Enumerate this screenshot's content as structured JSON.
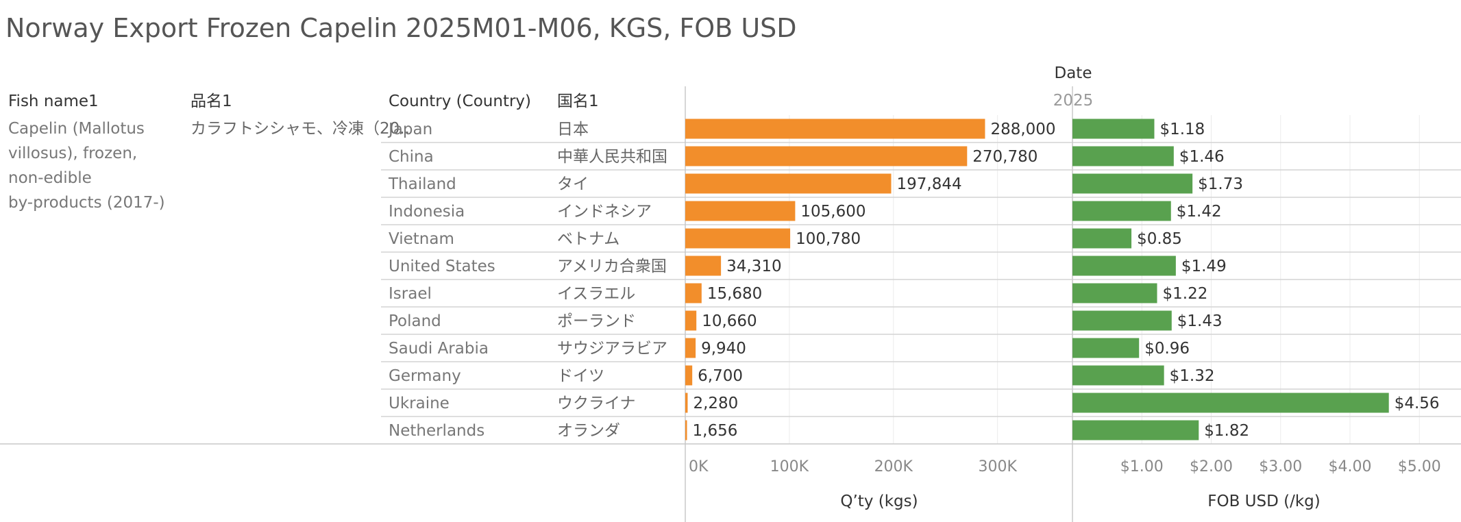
{
  "title": "Norway Export Frozen Capelin 2025M01-M06, KGS, FOB USD",
  "headers": {
    "fish_name": "Fish name1",
    "jp_product": "品名1",
    "country": "Country (Country)",
    "jp_country": "国名1",
    "date": "Date",
    "year": "2025"
  },
  "fish_name_lines": [
    "Capelin (Mallotus",
    "villosus), frozen,",
    "non-edible",
    "by-products (2017-)"
  ],
  "jp_product_name": "カラフトシシャモ、冷凍（20..",
  "chart_data": {
    "type": "bar",
    "categories": [
      "Japan",
      "China",
      "Thailand",
      "Indonesia",
      "Vietnam",
      "United States",
      "Israel",
      "Poland",
      "Saudi Arabia",
      "Germany",
      "Ukraine",
      "Netherlands"
    ],
    "categories_jp": [
      "日本",
      "中華人民共和国",
      "タイ",
      "インドネシア",
      "ベトナム",
      "アメリカ合衆国",
      "イスラエル",
      "ポーランド",
      "サウジアラビア",
      "ドイツ",
      "ウクライナ",
      "オランダ"
    ],
    "series": [
      {
        "name": "Q'ty (kgs)",
        "values": [
          288000,
          270780,
          197844,
          105600,
          100780,
          34310,
          15680,
          10660,
          9940,
          6700,
          2280,
          1656
        ],
        "labels": [
          "288,000",
          "270,780",
          "197,844",
          "105,600",
          "100,780",
          "34,310",
          "15,680",
          "10,660",
          "9,940",
          "6,700",
          "2,280",
          "1,656"
        ],
        "color": "#f28e2b",
        "xlim": [
          0,
          370000
        ],
        "ticks": [
          0,
          100000,
          200000,
          300000
        ],
        "tick_labels": [
          "0K",
          "100K",
          "200K",
          "300K"
        ],
        "axis_title": "Q’ty (kgs)"
      },
      {
        "name": "FOB USD (/kg)",
        "values": [
          1.18,
          1.46,
          1.73,
          1.42,
          0.85,
          1.49,
          1.22,
          1.43,
          0.96,
          1.32,
          4.56,
          1.82
        ],
        "labels": [
          "$1.18",
          "$1.46",
          "$1.73",
          "$1.42",
          "$0.85",
          "$1.49",
          "$1.22",
          "$1.43",
          "$0.96",
          "$1.32",
          "$4.56",
          "$1.82"
        ],
        "color": "#59a14f",
        "xlim": [
          0,
          5.6
        ],
        "ticks": [
          1,
          2,
          3,
          4,
          5
        ],
        "tick_labels": [
          "$1.00",
          "$2.00",
          "$3.00",
          "$4.00",
          "$5.00"
        ],
        "axis_title": "FOB USD (/kg)"
      }
    ],
    "grid": true
  }
}
